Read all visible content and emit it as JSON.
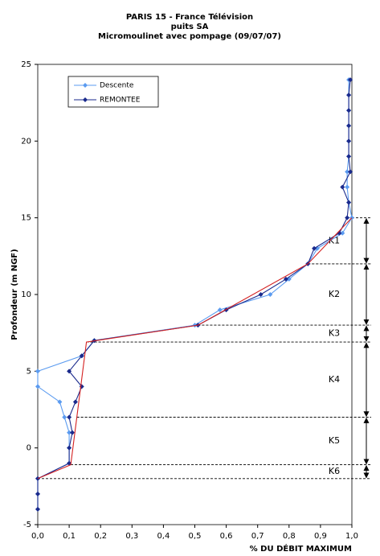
{
  "chart_data": {
    "type": "line",
    "title": [
      "PARIS 15 - France Télévision",
      "puits SA",
      "Micromoulinet avec pompage (09/07/07)"
    ],
    "x_label": "% DU DÉBIT MAXIMUM",
    "y_label": "Profondeur (m NGF)",
    "xlim": [
      0,
      1
    ],
    "ylim": [
      -5,
      25
    ],
    "xticks": [
      {
        "value": 0,
        "label": "0,0"
      },
      {
        "value": 0.1,
        "label": "0,1"
      },
      {
        "value": 0.2,
        "label": "0,2"
      },
      {
        "value": 0.3,
        "label": "0,3"
      },
      {
        "value": 0.4,
        "label": "0,4"
      },
      {
        "value": 0.5,
        "label": "0,5"
      },
      {
        "value": 0.6,
        "label": "0,6"
      },
      {
        "value": 0.7,
        "label": "0,7"
      },
      {
        "value": 0.8,
        "label": "0,8"
      },
      {
        "value": 0.9,
        "label": "0,9"
      },
      {
        "value": 1,
        "label": "1,0"
      }
    ],
    "yticks": [
      -5,
      0,
      5,
      10,
      15,
      20,
      25
    ],
    "series": [
      {
        "name": "Descente",
        "color": "#5b9bf0",
        "marker": "diamond",
        "values": [
          0.99,
          0.99,
          0.99,
          0.99,
          0.99,
          0.99,
          0.985,
          0.985,
          0.99,
          1.0,
          0.97,
          0.89,
          0.86,
          0.8,
          0.74,
          0.58,
          0.5,
          0.18,
          0.14,
          0.0,
          0.0,
          0.07,
          0.085,
          0.1,
          0.1,
          0.1,
          0.0,
          0.0,
          0.0
        ],
        "depth": [
          24,
          23,
          22,
          21,
          20,
          19,
          18,
          17,
          16,
          15,
          14,
          13,
          12,
          11,
          10,
          9,
          8,
          7,
          6,
          5,
          4,
          3,
          2,
          1,
          0,
          -1,
          -2,
          -3,
          -4
        ]
      },
      {
        "name": "REMONTEE",
        "color": "#1a2a8c",
        "marker": "diamond",
        "values": [
          0.995,
          0.99,
          0.99,
          0.99,
          0.99,
          0.99,
          0.995,
          0.97,
          0.99,
          0.985,
          0.96,
          0.88,
          0.86,
          0.79,
          0.71,
          0.6,
          0.51,
          0.18,
          0.14,
          0.1,
          0.14,
          0.12,
          0.1,
          0.11,
          0.1,
          0.1,
          0.0,
          0.0,
          0.0
        ],
        "depth": [
          24,
          23,
          22,
          21,
          20,
          19,
          18,
          17,
          16,
          15,
          14,
          13,
          12,
          11,
          10,
          9,
          8,
          7,
          6,
          5,
          4,
          3,
          2,
          1,
          0,
          -1,
          -2,
          -3,
          -4
        ]
      },
      {
        "color": "#d42020",
        "marker": "none",
        "values": [
          1.0,
          0.86,
          0.51,
          0.155,
          0.105,
          0.0
        ],
        "depth": [
          15,
          12,
          8,
          6.9,
          -1.1,
          -2
        ]
      }
    ],
    "zones": [
      {
        "label": "K1",
        "top": 15,
        "bottom": 12
      },
      {
        "label": "K2",
        "top": 12,
        "bottom": 8
      },
      {
        "label": "K3",
        "top": 8,
        "bottom": 6.9
      },
      {
        "label": "K4",
        "top": 6.9,
        "bottom": 2
      },
      {
        "label": "K5",
        "top": 2,
        "bottom": -1.1
      },
      {
        "label": "K6",
        "top": -1.1,
        "bottom": -2
      }
    ]
  }
}
